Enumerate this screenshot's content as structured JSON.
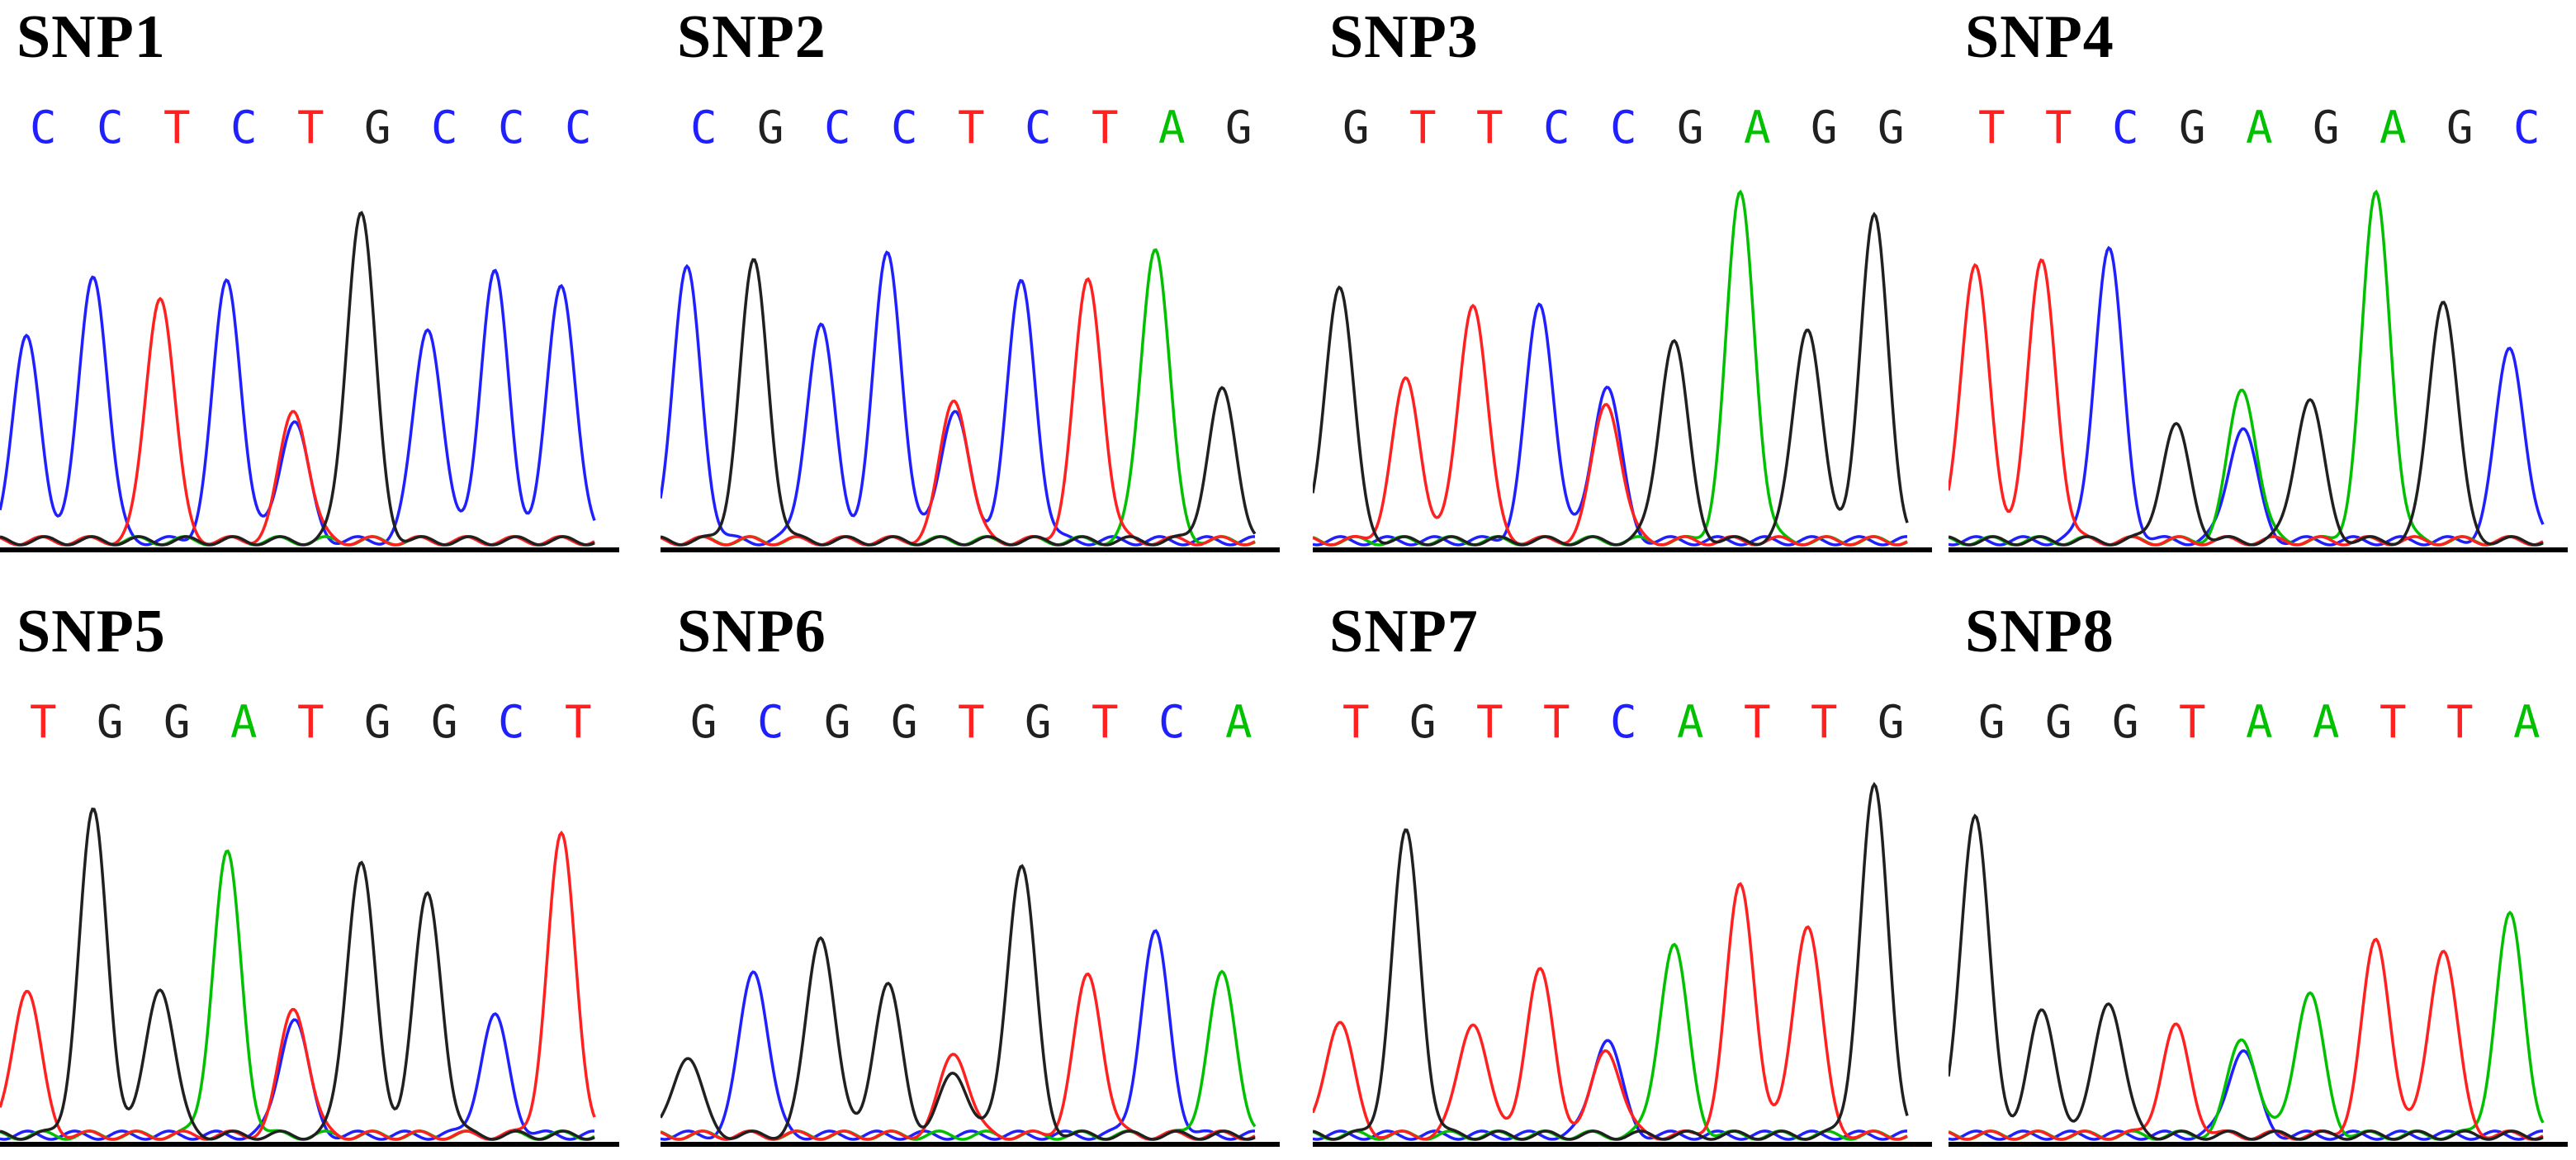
{
  "colors": {
    "A": "#00c000",
    "C": "#2020ff",
    "G": "#202020",
    "T": "#ff2020"
  },
  "panels": [
    {
      "title": "SNP1",
      "sequence": "CCTCTGCCC",
      "peaks": [
        {
          "base": "C",
          "h": 0.58
        },
        {
          "base": "C",
          "h": 0.77
        },
        {
          "base": "T",
          "h": 0.71
        },
        {
          "base": "C",
          "h": 0.75
        },
        {
          "base": "T",
          "h": 0.38,
          "minor": {
            "base": "C",
            "h": 0.35
          }
        },
        {
          "base": "G",
          "h": 0.95
        },
        {
          "base": "C",
          "h": 0.62
        },
        {
          "base": "C",
          "h": 0.77
        },
        {
          "base": "C",
          "h": 0.74
        }
      ]
    },
    {
      "title": "SNP2",
      "sequence": "CGCCTCTAG",
      "peaks": [
        {
          "base": "C",
          "h": 0.78
        },
        {
          "base": "G",
          "h": 0.8
        },
        {
          "base": "C",
          "h": 0.62
        },
        {
          "base": "C",
          "h": 0.83
        },
        {
          "base": "T",
          "h": 0.41,
          "minor": {
            "base": "C",
            "h": 0.38
          }
        },
        {
          "base": "C",
          "h": 0.74
        },
        {
          "base": "T",
          "h": 0.75
        },
        {
          "base": "A",
          "h": 0.85
        },
        {
          "base": "G",
          "h": 0.43
        }
      ]
    },
    {
      "title": "SNP3",
      "sequence": "GTTCCGAGG",
      "peaks": [
        {
          "base": "G",
          "h": 0.74
        },
        {
          "base": "T",
          "h": 0.46
        },
        {
          "base": "T",
          "h": 0.69
        },
        {
          "base": "C",
          "h": 0.68
        },
        {
          "base": "C",
          "h": 0.45,
          "minor": {
            "base": "T",
            "h": 0.4
          }
        },
        {
          "base": "G",
          "h": 0.58
        },
        {
          "base": "A",
          "h": 1.0
        },
        {
          "base": "G",
          "h": 0.62
        },
        {
          "base": "G",
          "h": 0.93
        }
      ]
    },
    {
      "title": "SNP4",
      "sequence": "TTCGAGAGC",
      "peaks": [
        {
          "base": "T",
          "h": 0.8
        },
        {
          "base": "T",
          "h": 0.8
        },
        {
          "base": "C",
          "h": 0.84
        },
        {
          "base": "G",
          "h": 0.33
        },
        {
          "base": "A",
          "h": 0.44,
          "minor": {
            "base": "C",
            "h": 0.33
          }
        },
        {
          "base": "G",
          "h": 0.41
        },
        {
          "base": "A",
          "h": 1.0
        },
        {
          "base": "G",
          "h": 0.7
        },
        {
          "base": "C",
          "h": 0.56
        }
      ]
    },
    {
      "title": "SNP5",
      "sequence": "TGGATGGCT",
      "peaks": [
        {
          "base": "T",
          "h": 0.42
        },
        {
          "base": "G",
          "h": 0.93
        },
        {
          "base": "G",
          "h": 0.43
        },
        {
          "base": "A",
          "h": 0.81
        },
        {
          "base": "T",
          "h": 0.37,
          "minor": {
            "base": "C",
            "h": 0.34
          }
        },
        {
          "base": "G",
          "h": 0.79
        },
        {
          "base": "G",
          "h": 0.69
        },
        {
          "base": "C",
          "h": 0.34
        },
        {
          "base": "T",
          "h": 0.86
        }
      ]
    },
    {
      "title": "SNP6",
      "sequence": "GCGGTGTCA",
      "peaks": [
        {
          "base": "G",
          "h": 0.23
        },
        {
          "base": "C",
          "h": 0.48
        },
        {
          "base": "G",
          "h": 0.58
        },
        {
          "base": "G",
          "h": 0.43
        },
        {
          "base": "T",
          "h": 0.24,
          "minor": {
            "base": "G",
            "h": 0.18
          }
        },
        {
          "base": "G",
          "h": 0.78
        },
        {
          "base": "T",
          "h": 0.46
        },
        {
          "base": "C",
          "h": 0.58
        },
        {
          "base": "A",
          "h": 0.46
        }
      ]
    },
    {
      "title": "SNP7",
      "sequence": "TGTTCATTG",
      "peaks": [
        {
          "base": "T",
          "h": 0.33
        },
        {
          "base": "G",
          "h": 0.87
        },
        {
          "base": "T",
          "h": 0.33
        },
        {
          "base": "T",
          "h": 0.47
        },
        {
          "base": "C",
          "h": 0.28,
          "minor": {
            "base": "T",
            "h": 0.25
          }
        },
        {
          "base": "A",
          "h": 0.55
        },
        {
          "base": "T",
          "h": 0.72
        },
        {
          "base": "T",
          "h": 0.61
        },
        {
          "base": "G",
          "h": 1.0
        }
      ]
    },
    {
      "title": "SNP8",
      "sequence": "GGGTAATTA",
      "peaks": [
        {
          "base": "G",
          "h": 0.93
        },
        {
          "base": "G",
          "h": 0.35
        },
        {
          "base": "G",
          "h": 0.39
        },
        {
          "base": "T",
          "h": 0.31
        },
        {
          "base": "A",
          "h": 0.28,
          "minor": {
            "base": "C",
            "h": 0.25
          }
        },
        {
          "base": "A",
          "h": 0.41
        },
        {
          "base": "T",
          "h": 0.56
        },
        {
          "base": "T",
          "h": 0.54
        },
        {
          "base": "A",
          "h": 0.63
        }
      ]
    }
  ]
}
